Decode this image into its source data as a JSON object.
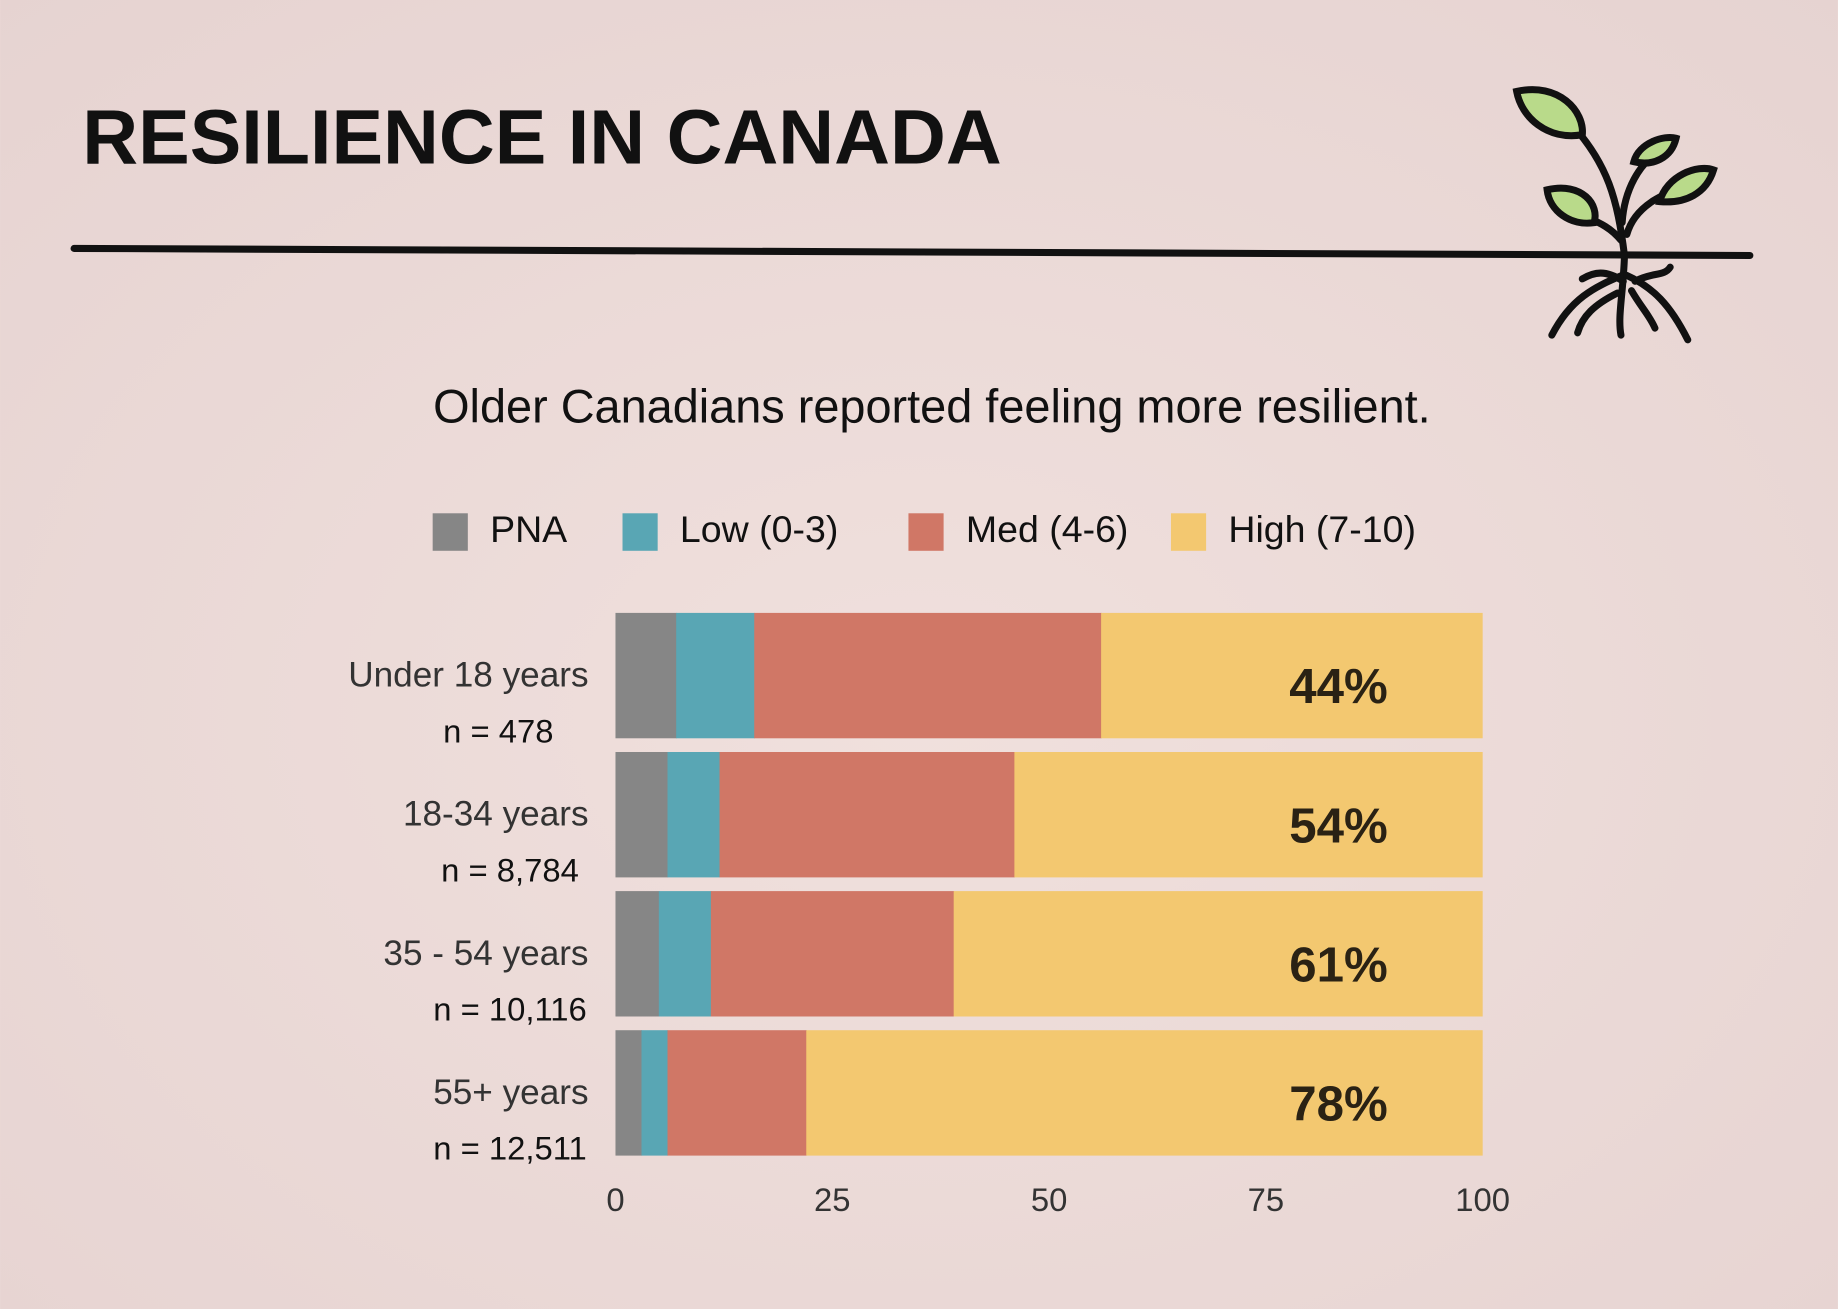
{
  "chart_data": {
    "type": "stacked_bar_horizontal",
    "title": "RESILIENCE IN CANADA",
    "subtitle": "Older Canadians reported feeling more resilient.",
    "categories": [
      "Under 18 years",
      "18-34 years",
      "35 - 54 years",
      "55+ years"
    ],
    "sample_sizes": [
      "n = 478",
      "n = 8,784",
      "n = 10,116",
      "n = 12,511"
    ],
    "series": [
      {
        "name": "PNA",
        "color": "#868686",
        "values": [
          7,
          6,
          5,
          3
        ]
      },
      {
        "name": "Low (0-3)",
        "color": "#59a6b4",
        "values": [
          9,
          6,
          6,
          3
        ]
      },
      {
        "name": "Med (4-6)",
        "color": "#d07766",
        "values": [
          40,
          34,
          28,
          16
        ]
      },
      {
        "name": "High (7-10)",
        "color": "#f3c870",
        "values": [
          44,
          54,
          61,
          78
        ],
        "value_labels": [
          "44%",
          "54%",
          "61%",
          "78%"
        ]
      }
    ],
    "xlim": [
      0,
      100
    ],
    "xticks": [
      0,
      25,
      50,
      75,
      100
    ],
    "grid": false,
    "legend": "top"
  }
}
